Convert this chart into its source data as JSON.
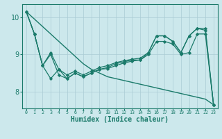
{
  "xlabel": "Humidex (Indice chaleur)",
  "bg_color": "#cce8ec",
  "grid_color": "#aaccd4",
  "line_color": "#1a7a6a",
  "xlim": [
    -0.5,
    23.5
  ],
  "ylim": [
    7.55,
    10.35
  ],
  "yticks": [
    8,
    9,
    10
  ],
  "xticks": [
    0,
    1,
    2,
    3,
    4,
    5,
    6,
    7,
    8,
    9,
    10,
    11,
    12,
    13,
    14,
    15,
    16,
    17,
    18,
    19,
    20,
    21,
    22,
    23
  ],
  "series": [
    {
      "x": [
        0,
        1,
        2,
        3,
        4,
        5,
        6,
        7,
        8,
        9,
        10,
        11,
        12,
        13,
        14,
        15,
        16,
        17,
        18,
        19,
        20,
        21,
        22,
        23
      ],
      "y": [
        10.15,
        9.95,
        9.75,
        9.55,
        9.35,
        9.15,
        8.95,
        8.75,
        8.6,
        8.5,
        8.4,
        8.35,
        8.3,
        8.25,
        8.2,
        8.15,
        8.1,
        8.05,
        8.0,
        7.95,
        7.9,
        7.85,
        7.8,
        7.65
      ],
      "marker": false,
      "lw": 1.0
    },
    {
      "x": [
        0,
        1,
        2,
        3,
        4,
        5,
        6,
        7,
        8,
        9,
        10,
        11,
        12,
        13,
        14,
        15,
        16,
        17,
        18,
        19,
        20,
        21,
        22,
        23
      ],
      "y": [
        10.15,
        9.55,
        8.7,
        9.05,
        8.6,
        8.45,
        8.55,
        8.45,
        8.55,
        8.65,
        8.7,
        8.78,
        8.83,
        8.87,
        8.9,
        9.05,
        9.5,
        9.5,
        9.35,
        9.05,
        9.5,
        9.7,
        9.65,
        7.65
      ],
      "marker": true,
      "lw": 0.9
    },
    {
      "x": [
        0,
        1,
        2,
        3,
        4,
        5,
        6,
        7,
        8,
        9,
        10,
        11,
        12,
        13,
        14,
        15,
        16,
        17,
        18,
        19,
        20,
        21,
        22,
        23
      ],
      "y": [
        10.15,
        9.55,
        8.7,
        9.0,
        8.45,
        8.35,
        8.5,
        8.4,
        8.5,
        8.6,
        8.62,
        8.7,
        8.77,
        8.82,
        8.85,
        9.0,
        9.35,
        9.35,
        9.28,
        9.0,
        9.05,
        9.55,
        9.55,
        7.65
      ],
      "marker": true,
      "lw": 0.9
    },
    {
      "x": [
        0,
        1,
        2,
        3,
        4,
        5,
        6,
        7,
        8,
        9,
        10,
        11,
        12,
        13,
        14,
        15,
        16,
        17,
        18,
        19,
        20,
        21,
        22,
        23
      ],
      "y": [
        10.15,
        9.55,
        8.7,
        8.35,
        8.6,
        8.35,
        8.5,
        8.4,
        8.5,
        8.6,
        8.65,
        8.75,
        8.8,
        8.85,
        8.85,
        9.05,
        9.5,
        9.5,
        9.35,
        9.05,
        9.5,
        9.7,
        9.7,
        7.65
      ],
      "marker": true,
      "lw": 0.9
    }
  ]
}
